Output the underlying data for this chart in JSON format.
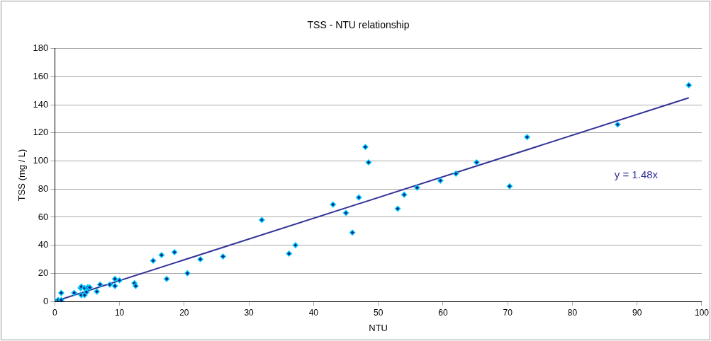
{
  "chart_data": {
    "type": "scatter",
    "title": "TSS - NTU relationship",
    "xlabel": "NTU",
    "ylabel": "TSS (mg / L)",
    "xlim": [
      0,
      100
    ],
    "xticks": [
      0,
      10,
      20,
      30,
      40,
      50,
      60,
      70,
      80,
      90,
      100
    ],
    "ylim": [
      0,
      180
    ],
    "yticks": [
      0,
      20,
      40,
      60,
      80,
      100,
      120,
      140,
      160,
      180
    ],
    "grid": "y",
    "legend": false,
    "marker": "diamond",
    "annotations": [
      "y = 1.48x"
    ],
    "series": [
      {
        "type": "scatter",
        "color": "#00ccff",
        "x": [
          0.5,
          1,
          1,
          3,
          4,
          4.1,
          4.1,
          4.6,
          4.6,
          5.1,
          4.9,
          5.4,
          6.5,
          7,
          8.5,
          9.3,
          9.3,
          10,
          12.3,
          12.5,
          15.2,
          16.5,
          17.3,
          18.5,
          20.5,
          22.5,
          26,
          32,
          36.2,
          37.2,
          43,
          45,
          46,
          47,
          48,
          48.5,
          53,
          54,
          56,
          59.6,
          62,
          65.2,
          70.3,
          73,
          87,
          98
        ],
        "values": [
          1,
          1,
          6,
          6,
          9.5,
          10.5,
          4.5,
          4.5,
          9.5,
          10,
          6.6,
          10,
          7,
          12,
          12,
          16,
          11,
          15,
          13,
          11,
          29,
          33,
          16,
          35,
          20,
          30,
          32,
          58,
          34,
          40,
          69,
          63,
          49,
          74,
          110,
          99,
          66,
          76,
          81,
          86,
          91,
          99,
          82,
          117,
          126,
          154
        ]
      },
      {
        "type": "line",
        "color": "#333399",
        "marker": "none",
        "x": [
          0,
          98
        ],
        "values": [
          0,
          145
        ]
      }
    ]
  }
}
